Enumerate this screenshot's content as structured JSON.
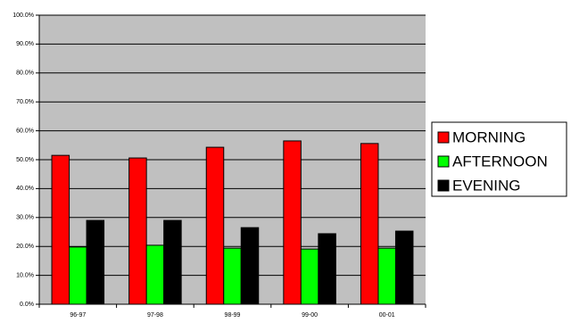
{
  "chart_data": {
    "type": "bar",
    "categories": [
      "96-97",
      "97-98",
      "98-99",
      "99-00",
      "00-01"
    ],
    "series": [
      {
        "name": "MORNING",
        "color": "#ff0000",
        "values": [
          51.5,
          50.6,
          54.3,
          56.5,
          55.6
        ]
      },
      {
        "name": "AFTERNOON",
        "color": "#00ff00",
        "values": [
          19.8,
          20.4,
          19.4,
          19.1,
          19.4
        ]
      },
      {
        "name": "EVENING",
        "color": "#000000",
        "values": [
          29.0,
          29.0,
          26.5,
          24.4,
          25.3
        ]
      }
    ],
    "ylim": [
      0,
      100
    ],
    "yticks": [
      {
        "value": 0,
        "label": "0.0%"
      },
      {
        "value": 10,
        "label": "10.0%"
      },
      {
        "value": 20,
        "label": "20.0%"
      },
      {
        "value": 30,
        "label": "30.0%"
      },
      {
        "value": 40,
        "label": "40.0%"
      },
      {
        "value": 50,
        "label": "50.0%"
      },
      {
        "value": 60,
        "label": "60.0%"
      },
      {
        "value": 70,
        "label": "70.0%"
      },
      {
        "value": 80,
        "label": "80.0%"
      },
      {
        "value": 90,
        "label": "90.0%"
      },
      {
        "value": 100,
        "label": "100.0%"
      }
    ],
    "grid": true,
    "legend": "right"
  }
}
